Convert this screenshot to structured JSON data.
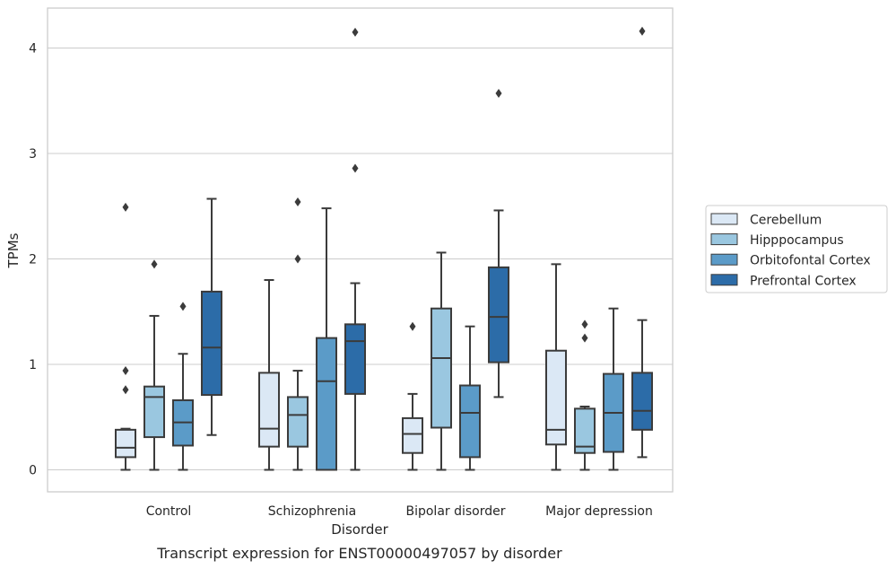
{
  "chart_data": {
    "type": "box",
    "caption": "Transcript expression for ENST00000497057 by disorder",
    "xlabel": "Disorder",
    "ylabel": "TPMs",
    "ylim": [
      -0.2,
      4.38
    ],
    "yticks": [
      0,
      1,
      2,
      3,
      4
    ],
    "grid": "horizontal",
    "legend_position": "right",
    "categories": [
      "Control",
      "Schizophrenia",
      "Bipolar disorder",
      "Major depression"
    ],
    "series": [
      {
        "name": "Cerebellum",
        "color": "#dbe8f5",
        "boxes": [
          {
            "whislo": 0.0,
            "q1": 0.12,
            "med": 0.21,
            "q3": 0.38,
            "whishi": 0.39,
            "fliers": [
              0.76,
              0.94,
              2.49
            ]
          },
          {
            "whislo": 0.0,
            "q1": 0.22,
            "med": 0.39,
            "q3": 0.92,
            "whishi": 1.8,
            "fliers": []
          },
          {
            "whislo": 0.0,
            "q1": 0.16,
            "med": 0.34,
            "q3": 0.49,
            "whishi": 0.72,
            "fliers": [
              1.36
            ]
          },
          {
            "whislo": 0.0,
            "q1": 0.24,
            "med": 0.38,
            "q3": 1.13,
            "whishi": 1.95,
            "fliers": []
          }
        ]
      },
      {
        "name": "Hipppocampus",
        "color": "#9ac7e0",
        "boxes": [
          {
            "whislo": 0.0,
            "q1": 0.31,
            "med": 0.69,
            "q3": 0.79,
            "whishi": 1.46,
            "fliers": [
              1.95
            ]
          },
          {
            "whislo": 0.0,
            "q1": 0.22,
            "med": 0.52,
            "q3": 0.69,
            "whishi": 0.94,
            "fliers": [
              2.0,
              2.54
            ]
          },
          {
            "whislo": 0.0,
            "q1": 0.4,
            "med": 1.06,
            "q3": 1.53,
            "whishi": 2.06,
            "fliers": []
          },
          {
            "whislo": 0.0,
            "q1": 0.16,
            "med": 0.22,
            "q3": 0.58,
            "whishi": 0.6,
            "fliers": [
              1.25,
              1.38
            ]
          }
        ]
      },
      {
        "name": "Orbitofontal Cortex",
        "color": "#5b9bc8",
        "boxes": [
          {
            "whislo": 0.0,
            "q1": 0.23,
            "med": 0.45,
            "q3": 0.66,
            "whishi": 1.1,
            "fliers": [
              1.55
            ]
          },
          {
            "whislo": 0.0,
            "q1": 0.0,
            "med": 0.84,
            "q3": 1.25,
            "whishi": 2.48,
            "fliers": []
          },
          {
            "whislo": 0.0,
            "q1": 0.12,
            "med": 0.54,
            "q3": 0.8,
            "whishi": 1.36,
            "fliers": []
          },
          {
            "whislo": 0.0,
            "q1": 0.17,
            "med": 0.54,
            "q3": 0.91,
            "whishi": 1.53,
            "fliers": []
          }
        ]
      },
      {
        "name": "Prefrontal Cortex",
        "color": "#2c6ca8",
        "boxes": [
          {
            "whislo": 0.33,
            "q1": 0.71,
            "med": 1.16,
            "q3": 1.69,
            "whishi": 2.57,
            "fliers": []
          },
          {
            "whislo": 0.0,
            "q1": 0.72,
            "med": 1.22,
            "q3": 1.38,
            "whishi": 1.77,
            "fliers": [
              2.86,
              4.15
            ]
          },
          {
            "whislo": 0.69,
            "q1": 1.02,
            "med": 1.45,
            "q3": 1.92,
            "whishi": 2.46,
            "fliers": [
              3.57
            ]
          },
          {
            "whislo": 0.12,
            "q1": 0.38,
            "med": 0.56,
            "q3": 0.92,
            "whishi": 1.42,
            "fliers": [
              4.16
            ]
          }
        ]
      }
    ]
  }
}
